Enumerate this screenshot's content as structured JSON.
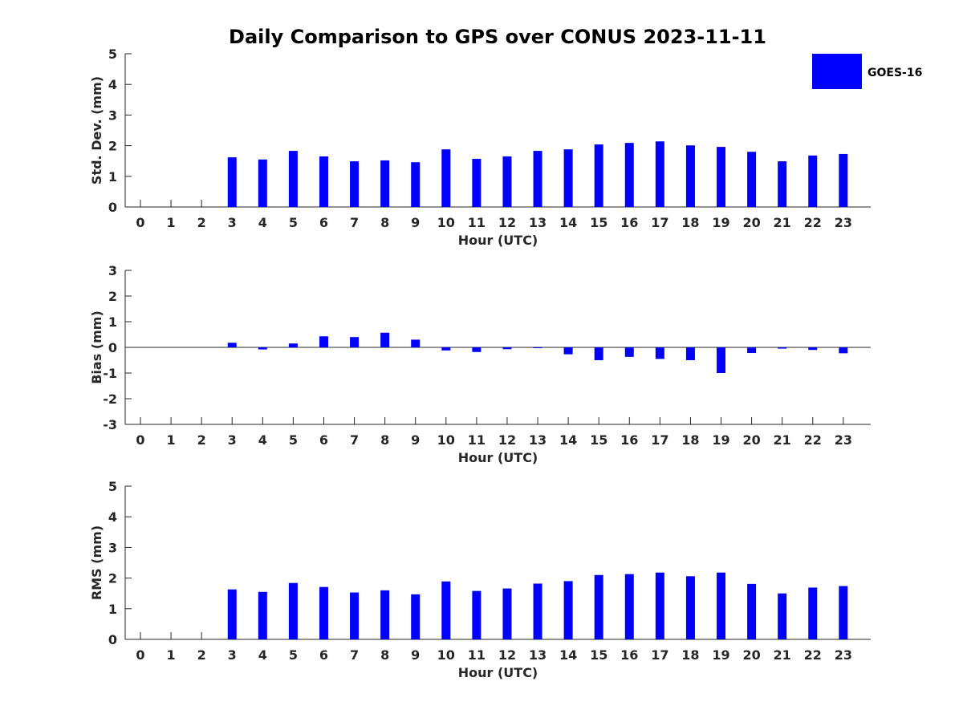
{
  "chart_data": {
    "title": "Daily Comparison to GPS over CONUS 2023-11-11",
    "legend": {
      "label": "GOES-16",
      "color": "#0000ff",
      "placement": "top-right"
    },
    "categories": [
      "0",
      "1",
      "2",
      "3",
      "4",
      "5",
      "6",
      "7",
      "8",
      "9",
      "10",
      "11",
      "12",
      "13",
      "14",
      "15",
      "16",
      "17",
      "18",
      "19",
      "20",
      "21",
      "22",
      "23"
    ],
    "panels": [
      {
        "type": "bar",
        "ylabel": "Std. Dev. (mm)",
        "xlabel": "Hour (UTC)",
        "ylim": [
          0,
          5
        ],
        "yticks": [
          "0",
          "1",
          "2",
          "3",
          "4",
          "5"
        ],
        "values": [
          null,
          null,
          null,
          1.62,
          1.55,
          1.83,
          1.65,
          1.49,
          1.52,
          1.46,
          1.88,
          1.57,
          1.65,
          1.83,
          1.88,
          2.04,
          2.09,
          2.14,
          2.01,
          1.96,
          1.8,
          1.49,
          1.68,
          1.73
        ]
      },
      {
        "type": "bar",
        "ylabel": "Bias (mm)",
        "xlabel": "Hour (UTC)",
        "ylim": [
          -3,
          3
        ],
        "yticks": [
          "-3",
          "-2",
          "-1",
          "0",
          "1",
          "2",
          "3"
        ],
        "values": [
          null,
          null,
          null,
          0.18,
          -0.08,
          0.15,
          0.43,
          0.4,
          0.57,
          0.3,
          -0.12,
          -0.18,
          -0.07,
          -0.02,
          -0.27,
          -0.5,
          -0.37,
          -0.45,
          -0.5,
          -1.0,
          -0.22,
          -0.05,
          -0.1,
          -0.23
        ]
      },
      {
        "type": "bar",
        "ylabel": "RMS (mm)",
        "xlabel": "Hour (UTC)",
        "ylim": [
          0,
          5
        ],
        "yticks": [
          "0",
          "1",
          "2",
          "3",
          "4",
          "5"
        ],
        "values": [
          null,
          null,
          null,
          1.63,
          1.55,
          1.84,
          1.71,
          1.53,
          1.6,
          1.47,
          1.89,
          1.58,
          1.66,
          1.82,
          1.9,
          2.1,
          2.13,
          2.18,
          2.06,
          2.18,
          1.81,
          1.5,
          1.69,
          1.74
        ]
      }
    ]
  }
}
